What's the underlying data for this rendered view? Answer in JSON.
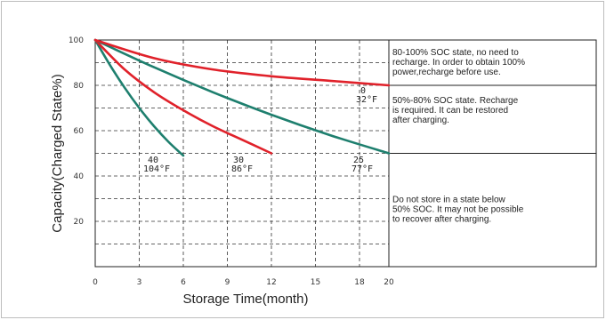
{
  "chart_data": {
    "type": "line",
    "xlabel": "Storage Time(month)",
    "ylabel": "Capacity(Charged State%)",
    "x_ticks": [
      "0",
      "3",
      "6",
      "9",
      "12",
      "15",
      "18",
      "20"
    ],
    "y_ticks": [
      "20",
      "40",
      "60",
      "80",
      "100"
    ],
    "xlim": [
      0,
      20
    ],
    "ylim": [
      0,
      100
    ],
    "grid": true,
    "grid_style": "dashed",
    "series": [
      {
        "color": "#1e7f6e",
        "temp_c": "40",
        "temp_f": "104°F",
        "x": [
          0,
          1,
          2,
          3,
          4,
          5,
          6
        ],
        "y": [
          100,
          89,
          79,
          70,
          62,
          55,
          49
        ]
      },
      {
        "color": "#e0212a",
        "temp_c": "30",
        "temp_f": "86°F",
        "x": [
          0,
          2,
          4,
          6,
          8,
          10,
          12
        ],
        "y": [
          100,
          87,
          77,
          69,
          62,
          56,
          50
        ]
      },
      {
        "color": "#1e7f6e",
        "temp_c": "25",
        "temp_f": "77°F",
        "x": [
          0,
          4,
          8,
          12,
          16,
          20
        ],
        "y": [
          100,
          88,
          77,
          67,
          58,
          50
        ]
      },
      {
        "color": "#e0212a",
        "temp_c": "0",
        "temp_f": "32°F",
        "x": [
          0,
          4,
          8,
          12,
          16,
          20
        ],
        "y": [
          100,
          92,
          87,
          84,
          82,
          80
        ]
      }
    ],
    "zones": [
      {
        "y_range": [
          80,
          100
        ],
        "text": [
          "80-100% SOC state,  no need to",
          "recharge. In order to obtain 100%",
          "power,recharge before use."
        ]
      },
      {
        "y_range": [
          50,
          80
        ],
        "text": [
          "50%-80% SOC state. Recharge",
          "is required. It can be restored",
          "after charging."
        ]
      },
      {
        "y_range": [
          0,
          50
        ],
        "text": [
          "Do not store in a state below",
          "50% SOC. It may not be  possible",
          "to recover after charging."
        ]
      }
    ]
  }
}
